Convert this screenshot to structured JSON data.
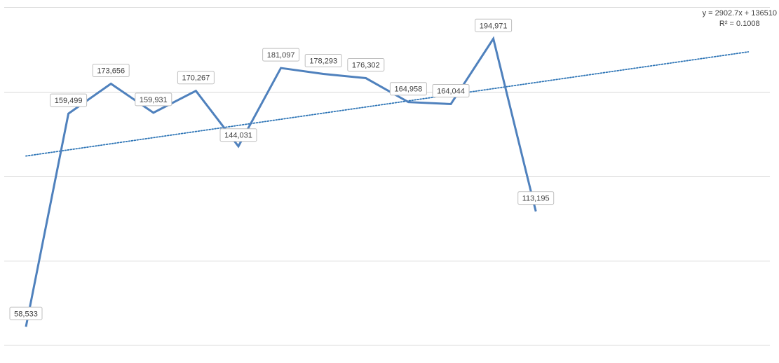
{
  "chart_data": {
    "type": "line",
    "title": "",
    "xlabel": "",
    "ylabel": "",
    "ylim": [
      50000,
      200000
    ],
    "grid": true,
    "gridlines": [
      50000,
      90000,
      130000,
      170000,
      210000
    ],
    "series": [
      {
        "color": "#4f81bd",
        "values": [
          58533,
          159499,
          173656,
          159931,
          170267,
          144031,
          181097,
          178293,
          176302,
          164958,
          164044,
          194971,
          113195
        ],
        "labels": [
          "58,533",
          "159,499",
          "173,656",
          "159,931",
          "170,267",
          "144,031",
          "181,097",
          "178,293",
          "176,302",
          "164,958",
          "164,044",
          "194,971",
          "113,195"
        ]
      }
    ],
    "trendline": {
      "type": "linear",
      "color": "#2e75b6",
      "style": "dotted",
      "slope": 2902.7,
      "intercept": 136510,
      "extend_forward": 5,
      "equation": "y = 2902.7x + 136510",
      "r_squared": "R² = 0.1008"
    }
  }
}
